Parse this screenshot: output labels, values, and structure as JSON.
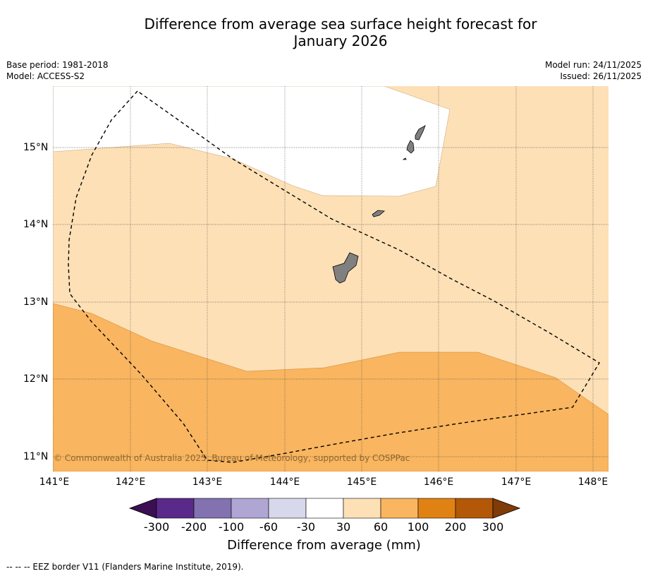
{
  "title_line1": "Difference from average sea surface height forecast for",
  "title_line2": "January 2026",
  "meta": {
    "base_period": "Base period: 1981-2018",
    "model": "Model: ACCESS-S2",
    "model_run": "Model run: 24/11/2025",
    "issued": "Issued: 26/11/2025"
  },
  "axes": {
    "lat_labels": [
      "15°N",
      "14°N",
      "13°N",
      "12°N",
      "11°N"
    ],
    "lon_labels": [
      "141°E",
      "142°E",
      "143°E",
      "144°E",
      "145°E",
      "146°E",
      "147°E",
      "148°E"
    ]
  },
  "copyright": "© Commonwealth of Australia 2025, Bureau of Meteorology, supported by COSPPac",
  "colorbar": {
    "ticks": [
      "-300",
      "-200",
      "-100",
      "-60",
      "-30",
      "30",
      "60",
      "100",
      "200",
      "300"
    ],
    "colors": [
      "#3b0f52",
      "#5a2a8a",
      "#8272b0",
      "#b0a6d4",
      "#d8d8ec",
      "#ffffff",
      "#fde0b6",
      "#f9b55f",
      "#e08213",
      "#b35806",
      "#7f3b08"
    ],
    "label": "Difference from average (mm)"
  },
  "legend_colors": {
    "band_30_60": "#fde0b6",
    "band_60_100": "#f9b55f",
    "land": "#808080"
  },
  "footnote": "--  --  -- EEZ border V11 (Flanders Marine Institute, 2019)."
}
